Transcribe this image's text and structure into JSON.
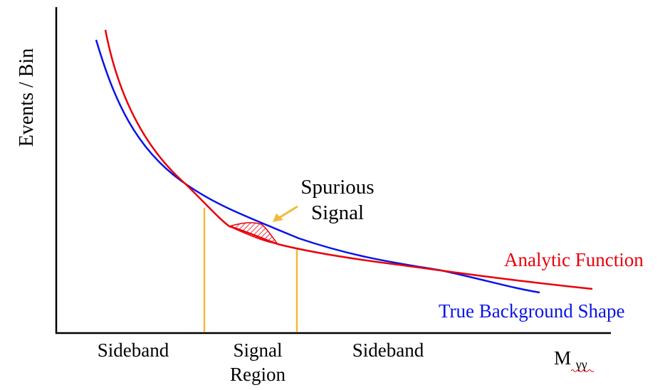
{
  "y_axis_label": "Events / Bin",
  "x_axis_label_main": "M",
  "x_axis_label_sub": "γγ",
  "regions": {
    "left_sideband": "Sideband",
    "signal_line1": "Signal",
    "signal_line2": "Region",
    "right_sideband": "Sideband"
  },
  "annotation": {
    "line1": "Spurious",
    "line2": "Signal"
  },
  "legend": {
    "analytic": "Analytic Function",
    "true_background": "True Background Shape"
  },
  "colors": {
    "analytic": "#e8000b",
    "true_background": "#0a14e6",
    "region_lines": "#f2b93b",
    "arrow": "#f2b93b",
    "axis": "#000000",
    "text": "#000000"
  }
}
